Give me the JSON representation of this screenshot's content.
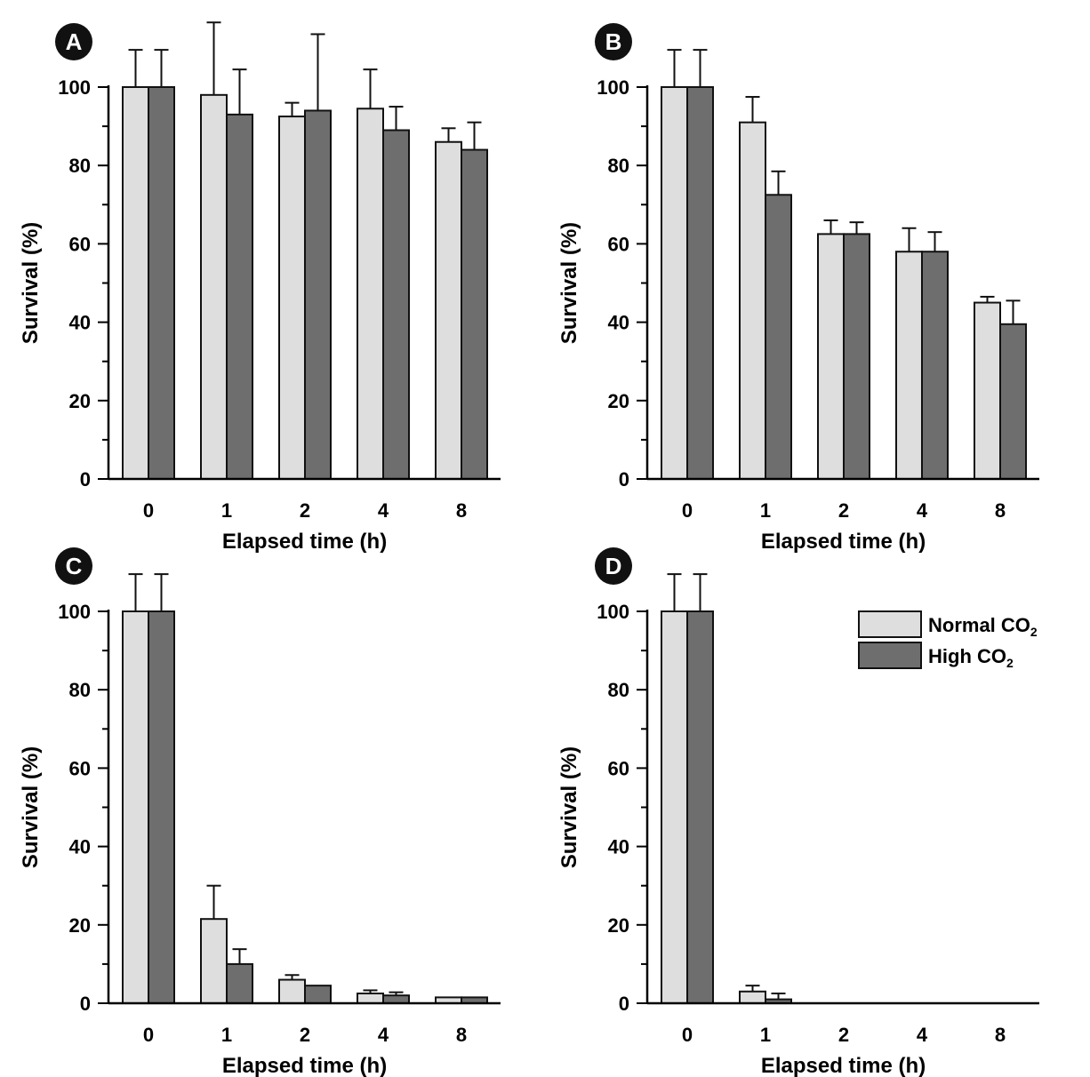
{
  "figure": {
    "colors": {
      "normal_co2": "#dedede",
      "high_co2": "#6e6e6e",
      "bar_stroke": "#111111",
      "badge": "#111111"
    },
    "legend": {
      "items": [
        {
          "label": "Normal CO",
          "subscript": "2",
          "color_key": "normal_co2"
        },
        {
          "label": "High CO",
          "subscript": "2",
          "color_key": "high_co2"
        }
      ]
    }
  },
  "chart_data": [
    {
      "panel": "A",
      "type": "bar",
      "categories": [
        "0",
        "1",
        "2",
        "4",
        "8"
      ],
      "xlabel": "Elapsed time (h)",
      "ylabel": "Survival (%)",
      "ylim": [
        0,
        100
      ],
      "yticks": [
        0,
        20,
        40,
        60,
        80,
        100
      ],
      "series": [
        {
          "name": "Normal CO2",
          "values": [
            100,
            98,
            92.5,
            94.5,
            86
          ],
          "errors": [
            9.5,
            18.5,
            3.5,
            10,
            3.5
          ]
        },
        {
          "name": "High CO2",
          "values": [
            100,
            93,
            94,
            89,
            84
          ],
          "errors": [
            9.5,
            11.5,
            19.5,
            6,
            7
          ]
        }
      ]
    },
    {
      "panel": "B",
      "type": "bar",
      "categories": [
        "0",
        "1",
        "2",
        "4",
        "8"
      ],
      "xlabel": "Elapsed time (h)",
      "ylabel": "Survival (%)",
      "ylim": [
        0,
        100
      ],
      "yticks": [
        0,
        20,
        40,
        60,
        80,
        100
      ],
      "series": [
        {
          "name": "Normal CO2",
          "values": [
            100,
            91,
            62.5,
            58,
            45
          ],
          "errors": [
            9.5,
            6.5,
            3.5,
            6,
            1.5
          ]
        },
        {
          "name": "High CO2",
          "values": [
            100,
            72.5,
            62.5,
            58,
            39.5
          ],
          "errors": [
            9.5,
            6,
            3,
            5,
            6
          ]
        }
      ]
    },
    {
      "panel": "C",
      "type": "bar",
      "categories": [
        "0",
        "1",
        "2",
        "4",
        "8"
      ],
      "xlabel": "Elapsed time (h)",
      "ylabel": "Survival (%)",
      "ylim": [
        0,
        100
      ],
      "yticks": [
        0,
        20,
        40,
        60,
        80,
        100
      ],
      "series": [
        {
          "name": "Normal CO2",
          "values": [
            100,
            21.5,
            6,
            2.5,
            1.5
          ],
          "errors": [
            9.5,
            8.5,
            1.2,
            0.8,
            0
          ]
        },
        {
          "name": "High CO2",
          "values": [
            100,
            10,
            4.5,
            2,
            1.5
          ],
          "errors": [
            9.5,
            3.8,
            0,
            0.8,
            0
          ]
        }
      ]
    },
    {
      "panel": "D",
      "type": "bar",
      "categories": [
        "0",
        "1",
        "2",
        "4",
        "8"
      ],
      "xlabel": "Elapsed time (h)",
      "ylabel": "Survival (%)",
      "ylim": [
        0,
        100
      ],
      "yticks": [
        0,
        20,
        40,
        60,
        80,
        100
      ],
      "legend_position": "top-right",
      "series": [
        {
          "name": "Normal CO2",
          "values": [
            100,
            3,
            0,
            0,
            0
          ],
          "errors": [
            9.5,
            1.5,
            0,
            0,
            0
          ]
        },
        {
          "name": "High CO2",
          "values": [
            100,
            1,
            0,
            0,
            0
          ],
          "errors": [
            9.5,
            1.5,
            0,
            0,
            0
          ]
        }
      ]
    }
  ]
}
